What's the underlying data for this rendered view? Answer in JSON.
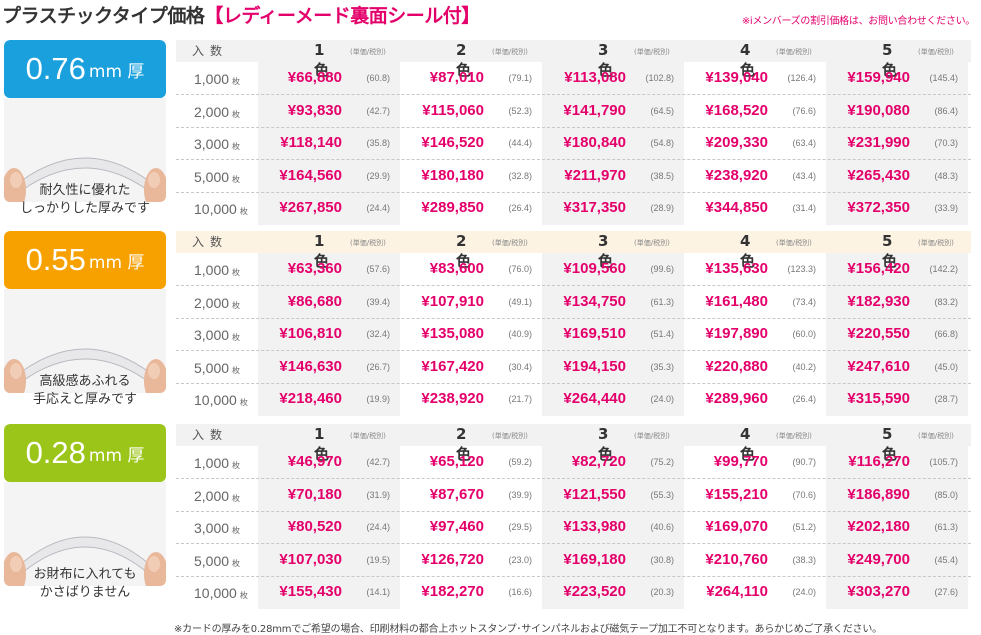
{
  "header": {
    "title_main": "プラスチックタイプ価格",
    "title_accent": "【レディーメード裏面シール付】",
    "note": "※iメンバーズの割引価格は、お問い合わせください。"
  },
  "table_labels": {
    "count": "入数",
    "unit_suffix": "枚",
    "tax_note": "(単価/税別)"
  },
  "colors": {
    "price": "#e4006b",
    "tier_076": "#1aa0dd",
    "tier_055": "#f6a100",
    "tier_028": "#9cc51a"
  },
  "columns": [
    "1色",
    "2色",
    "3色",
    "4色",
    "5色"
  ],
  "tiers": [
    {
      "thickness": "0.76",
      "unit": "mm 厚",
      "description_line1": "耐久性に優れた",
      "description_line2": "しっかりした厚みです",
      "rows": [
        {
          "qty": "1,000",
          "prices": [
            [
              "¥66,880",
              "(60.8)"
            ],
            [
              "¥87,010",
              "(79.1)"
            ],
            [
              "¥113,080",
              "(102.8)"
            ],
            [
              "¥139,040",
              "(126.4)"
            ],
            [
              "¥159,940",
              "(145.4)"
            ]
          ]
        },
        {
          "qty": "2,000",
          "prices": [
            [
              "¥93,830",
              "(42.7)"
            ],
            [
              "¥115,060",
              "(52.3)"
            ],
            [
              "¥141,790",
              "(64.5)"
            ],
            [
              "¥168,520",
              "(76.6)"
            ],
            [
              "¥190,080",
              "(86.4)"
            ]
          ]
        },
        {
          "qty": "3,000",
          "prices": [
            [
              "¥118,140",
              "(35.8)"
            ],
            [
              "¥146,520",
              "(44.4)"
            ],
            [
              "¥180,840",
              "(54.8)"
            ],
            [
              "¥209,330",
              "(63.4)"
            ],
            [
              "¥231,990",
              "(70.3)"
            ]
          ]
        },
        {
          "qty": "5,000",
          "prices": [
            [
              "¥164,560",
              "(29.9)"
            ],
            [
              "¥180,180",
              "(32.8)"
            ],
            [
              "¥211,970",
              "(38.5)"
            ],
            [
              "¥238,920",
              "(43.4)"
            ],
            [
              "¥265,430",
              "(48.3)"
            ]
          ]
        },
        {
          "qty": "10,000",
          "prices": [
            [
              "¥267,850",
              "(24.4)"
            ],
            [
              "¥289,850",
              "(26.4)"
            ],
            [
              "¥317,350",
              "(28.9)"
            ],
            [
              "¥344,850",
              "(31.4)"
            ],
            [
              "¥372,350",
              "(33.9)"
            ]
          ]
        }
      ]
    },
    {
      "thickness": "0.55",
      "unit": "mm 厚",
      "description_line1": "高級感あふれる",
      "description_line2": "手応えと厚みです",
      "rows": [
        {
          "qty": "1,000",
          "prices": [
            [
              "¥63,360",
              "(57.6)"
            ],
            [
              "¥83,600",
              "(76.0)"
            ],
            [
              "¥109,560",
              "(99.6)"
            ],
            [
              "¥135,630",
              "(123.3)"
            ],
            [
              "¥156,420",
              "(142.2)"
            ]
          ]
        },
        {
          "qty": "2,000",
          "prices": [
            [
              "¥86,680",
              "(39.4)"
            ],
            [
              "¥107,910",
              "(49.1)"
            ],
            [
              "¥134,750",
              "(61.3)"
            ],
            [
              "¥161,480",
              "(73.4)"
            ],
            [
              "¥182,930",
              "(83.2)"
            ]
          ]
        },
        {
          "qty": "3,000",
          "prices": [
            [
              "¥106,810",
              "(32.4)"
            ],
            [
              "¥135,080",
              "(40.9)"
            ],
            [
              "¥169,510",
              "(51.4)"
            ],
            [
              "¥197,890",
              "(60.0)"
            ],
            [
              "¥220,550",
              "(66.8)"
            ]
          ]
        },
        {
          "qty": "5,000",
          "prices": [
            [
              "¥146,630",
              "(26.7)"
            ],
            [
              "¥167,420",
              "(30.4)"
            ],
            [
              "¥194,150",
              "(35.3)"
            ],
            [
              "¥220,880",
              "(40.2)"
            ],
            [
              "¥247,610",
              "(45.0)"
            ]
          ]
        },
        {
          "qty": "10,000",
          "prices": [
            [
              "¥218,460",
              "(19.9)"
            ],
            [
              "¥238,920",
              "(21.7)"
            ],
            [
              "¥264,440",
              "(24.0)"
            ],
            [
              "¥289,960",
              "(26.4)"
            ],
            [
              "¥315,590",
              "(28.7)"
            ]
          ]
        }
      ]
    },
    {
      "thickness": "0.28",
      "unit": "mm 厚",
      "description_line1": "お財布に入れても",
      "description_line2": "かさばりません",
      "rows": [
        {
          "qty": "1,000",
          "prices": [
            [
              "¥46,970",
              "(42.7)"
            ],
            [
              "¥65,120",
              "(59.2)"
            ],
            [
              "¥82,720",
              "(75.2)"
            ],
            [
              "¥99,770",
              "(90.7)"
            ],
            [
              "¥116,270",
              "(105.7)"
            ]
          ]
        },
        {
          "qty": "2,000",
          "prices": [
            [
              "¥70,180",
              "(31.9)"
            ],
            [
              "¥87,670",
              "(39.9)"
            ],
            [
              "¥121,550",
              "(55.3)"
            ],
            [
              "¥155,210",
              "(70.6)"
            ],
            [
              "¥186,890",
              "(85.0)"
            ]
          ]
        },
        {
          "qty": "3,000",
          "prices": [
            [
              "¥80,520",
              "(24.4)"
            ],
            [
              "¥97,460",
              "(29.5)"
            ],
            [
              "¥133,980",
              "(40.6)"
            ],
            [
              "¥169,070",
              "(51.2)"
            ],
            [
              "¥202,180",
              "(61.3)"
            ]
          ]
        },
        {
          "qty": "5,000",
          "prices": [
            [
              "¥107,030",
              "(19.5)"
            ],
            [
              "¥126,720",
              "(23.0)"
            ],
            [
              "¥169,180",
              "(30.8)"
            ],
            [
              "¥210,760",
              "(38.3)"
            ],
            [
              "¥249,700",
              "(45.4)"
            ]
          ]
        },
        {
          "qty": "10,000",
          "prices": [
            [
              "¥155,430",
              "(14.1)"
            ],
            [
              "¥182,270",
              "(16.6)"
            ],
            [
              "¥223,520",
              "(20.3)"
            ],
            [
              "¥264,110",
              "(24.0)"
            ],
            [
              "¥303,270",
              "(27.6)"
            ]
          ]
        }
      ]
    }
  ],
  "footer": {
    "note": "※カードの厚みを0.28mmでご希望の場合、印刷材料の都合上ホットスタンプ･サインパネルおよび磁気テープ加工不可となります。あらかじめご了承ください。"
  }
}
